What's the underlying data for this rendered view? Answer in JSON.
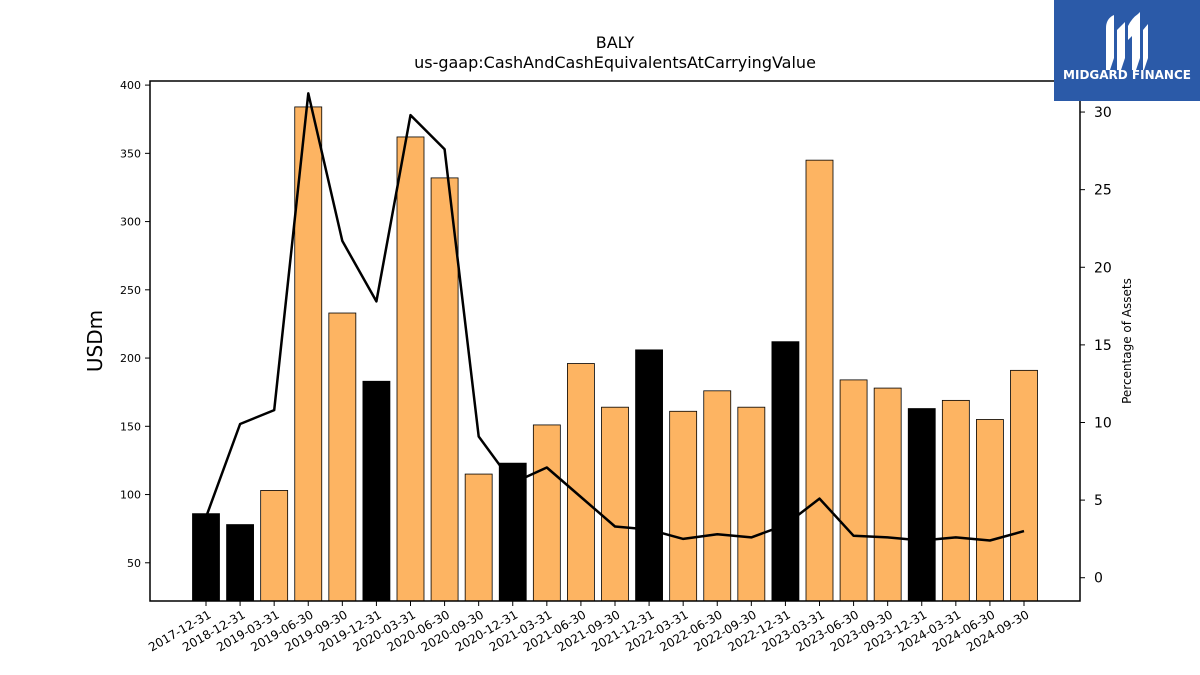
{
  "chart_data": {
    "type": "bar",
    "title": "BALY",
    "subtitle": "us-gaap:CashAndCashEquivalentsAtCarryingValue",
    "ylabel": "USDm",
    "y2label": "Percentage of Assets",
    "ylim": [
      22,
      403
    ],
    "y2lim": [
      -1.5,
      32
    ],
    "yticks": [
      50,
      100,
      150,
      200,
      250,
      300,
      350,
      400
    ],
    "y2ticks": [
      0,
      5,
      10,
      15,
      20,
      25,
      30
    ],
    "categories": [
      "2017-12-31",
      "2018-12-31",
      "2019-03-31",
      "2019-06-30",
      "2019-09-30",
      "2019-12-31",
      "2020-03-31",
      "2020-06-30",
      "2020-09-30",
      "2020-12-31",
      "2021-03-31",
      "2021-06-30",
      "2021-09-30",
      "2021-12-31",
      "2022-03-31",
      "2022-06-30",
      "2022-09-30",
      "2022-12-31",
      "2023-03-31",
      "2023-06-30",
      "2023-09-30",
      "2023-12-31",
      "2024-03-31",
      "2024-06-30",
      "2024-09-30"
    ],
    "series": [
      {
        "kind": "bar",
        "values": [
          86,
          78,
          103,
          384,
          233,
          183,
          362,
          332,
          115,
          123,
          151,
          196,
          164,
          206,
          161,
          176,
          164,
          212,
          345,
          184,
          178,
          163,
          169,
          155,
          191
        ],
        "annual": [
          true,
          true,
          false,
          false,
          false,
          true,
          false,
          false,
          false,
          true,
          false,
          false,
          false,
          true,
          false,
          false,
          false,
          true,
          false,
          false,
          false,
          true,
          false,
          false,
          false
        ]
      },
      {
        "kind": "line",
        "axis": "right",
        "values": [
          3.9,
          9.9,
          10.8,
          31.2,
          21.7,
          17.8,
          29.8,
          27.6,
          9.1,
          6.1,
          7.1,
          5.2,
          3.3,
          3.1,
          2.5,
          2.8,
          2.6,
          3.4,
          5.1,
          2.7,
          2.6,
          2.4,
          2.6,
          2.4,
          3.0
        ]
      }
    ],
    "colors": {
      "annual_bar": "#000000",
      "quarter_bar": "#fdb462",
      "line": "#000000"
    },
    "grid": false,
    "legend": "none"
  },
  "logo": {
    "text": "MIDGARD FINANCE"
  }
}
